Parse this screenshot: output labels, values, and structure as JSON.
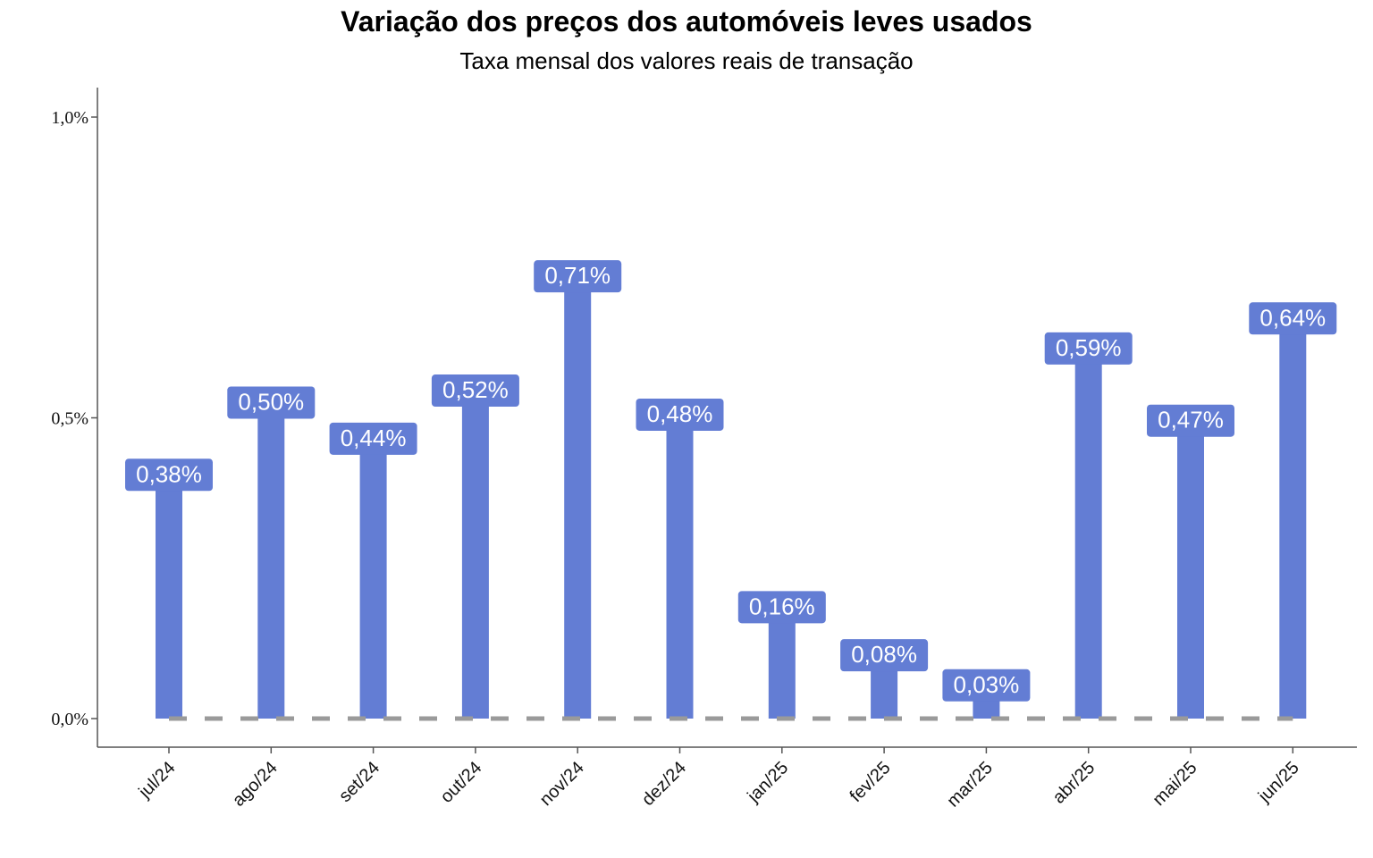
{
  "chart_data": {
    "type": "bar",
    "title": "Variação dos preços dos automóveis leves usados",
    "subtitle": "Taxa mensal dos valores reais de transação",
    "xlabel": "",
    "ylabel": "",
    "categories": [
      "jul/24",
      "ago/24",
      "set/24",
      "out/24",
      "nov/24",
      "dez/24",
      "jan/25",
      "fev/25",
      "mar/25",
      "abr/25",
      "mai/25",
      "jun/25"
    ],
    "values": [
      0.38,
      0.5,
      0.44,
      0.52,
      0.71,
      0.48,
      0.16,
      0.08,
      0.03,
      0.59,
      0.47,
      0.64
    ],
    "data_labels": [
      "0,38%",
      "0,50%",
      "0,44%",
      "0,52%",
      "0,71%",
      "0,48%",
      "0,16%",
      "0,08%",
      "0,03%",
      "0,59%",
      "0,47%",
      "0,64%"
    ],
    "yticks": [
      0.0,
      0.5,
      1.0
    ],
    "ytick_labels": [
      "0,0%",
      "0,5%",
      "1,0%"
    ],
    "ylim": [
      -0.05,
      1.05
    ],
    "reference_line": 0.0,
    "grid": false,
    "legend": "none",
    "colors": {
      "bar": "#637dd4",
      "label_box": "#637dd4",
      "label_text": "#ffffff",
      "reference_line": "#9a9a9a",
      "axis": "#555555"
    }
  }
}
